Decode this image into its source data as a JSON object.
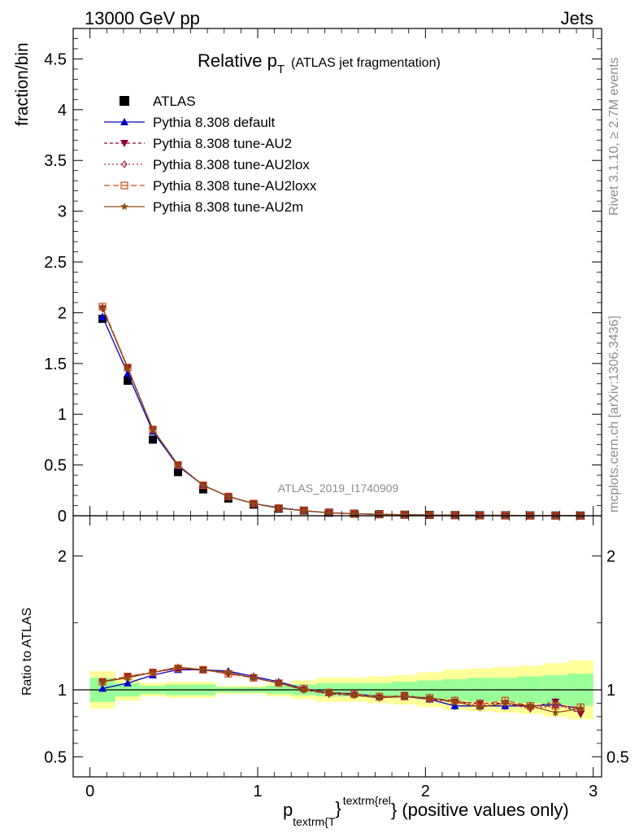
{
  "header": {
    "left": "13000 GeV pp",
    "right": "Jets"
  },
  "side_labels": {
    "rivet": "Rivet 3.1.10, ≥ 2.7M events",
    "mcplots": "mcplots.cern.ch [arXiv:1306.3436]"
  },
  "colors": {
    "ATLAS": "#000000",
    "default": "#0000cc",
    "AU2": "#8b0038",
    "AU2lox": "#b0203a",
    "AU2loxx": "#cc4a10",
    "AU2m": "#8b4a10",
    "band_inner": "#99ff99",
    "band_outer": "#ffff99"
  },
  "chart_data": [
    {
      "type": "line",
      "title_main": "Relative p",
      "title_sub": "T",
      "title_rest": "(ATLAS jet fragmentation)",
      "ylabel": "fraction/bin",
      "watermark": "ATLAS_2019_I1740909",
      "xlim": [
        -0.1,
        3.05
      ],
      "ylim": [
        0,
        4.8
      ],
      "yticks": [
        "0",
        "0.5",
        "1",
        "1.5",
        "2",
        "2.5",
        "3",
        "3.5",
        "4",
        "4.5"
      ],
      "x": [
        0.075,
        0.225,
        0.375,
        0.525,
        0.675,
        0.825,
        0.975,
        1.125,
        1.275,
        1.425,
        1.575,
        1.725,
        1.875,
        2.025,
        2.175,
        2.325,
        2.475,
        2.625,
        2.775,
        2.925
      ],
      "series": [
        {
          "name": "ATLAS",
          "marker": "square",
          "values": [
            1.94,
            1.33,
            0.75,
            0.43,
            0.26,
            0.17,
            0.11,
            0.07,
            0.05,
            0.03,
            0.02,
            0.015,
            0.01,
            0.008,
            0.006,
            0.005,
            0.004,
            0.003,
            0.0025,
            0.002
          ]
        },
        {
          "name": "Pythia 8.308 default",
          "marker": "triangle-up",
          "values": [
            1.96,
            1.4,
            0.83,
            0.49,
            0.3,
            0.19,
            0.12,
            0.08,
            0.05,
            0.03,
            0.02,
            0.014,
            0.0095,
            0.0074,
            0.0053,
            0.0044,
            0.0035,
            0.0026,
            0.0022,
            0.0017
          ]
        },
        {
          "name": "Pythia 8.308 tune-AU2",
          "marker": "triangle-down",
          "values": [
            2.04,
            1.46,
            0.85,
            0.5,
            0.3,
            0.19,
            0.12,
            0.075,
            0.05,
            0.029,
            0.019,
            0.014,
            0.0095,
            0.0075,
            0.0055,
            0.0044,
            0.0036,
            0.0026,
            0.0023,
            0.0016
          ]
        },
        {
          "name": "Pythia 8.308 tune-AU2lox",
          "marker": "diamond",
          "values": [
            2.05,
            1.46,
            0.85,
            0.5,
            0.3,
            0.19,
            0.12,
            0.075,
            0.05,
            0.029,
            0.019,
            0.014,
            0.0095,
            0.0075,
            0.0055,
            0.0045,
            0.0036,
            0.0026,
            0.0022,
            0.0017
          ]
        },
        {
          "name": "Pythia 8.308 tune-AU2loxx",
          "marker": "square-open",
          "values": [
            2.06,
            1.46,
            0.85,
            0.5,
            0.3,
            0.19,
            0.12,
            0.075,
            0.05,
            0.029,
            0.019,
            0.014,
            0.0095,
            0.0074,
            0.0055,
            0.0045,
            0.0037,
            0.0027,
            0.0023,
            0.0017
          ]
        },
        {
          "name": "Pythia 8.308 tune-AU2m",
          "marker": "star",
          "values": [
            2.05,
            1.45,
            0.85,
            0.5,
            0.3,
            0.19,
            0.12,
            0.075,
            0.05,
            0.029,
            0.019,
            0.014,
            0.0095,
            0.0075,
            0.0054,
            0.0044,
            0.0035,
            0.0026,
            0.0021,
            0.0017
          ]
        }
      ]
    },
    {
      "type": "line",
      "ylabel": "Ratio to ATLAS",
      "xlabel_main": "p",
      "xlabel_sub": "textrm{T",
      "xlabel_sup": "textrm{rel",
      "xlabel_rest": "} (positive values only)",
      "xlabel_close": "}",
      "xlim": [
        -0.1,
        3.05
      ],
      "ylim": [
        0.35,
        2.3
      ],
      "yticks": [
        "0.5",
        "1",
        "2"
      ],
      "xticks": [
        "0",
        "1",
        "2",
        "3"
      ],
      "bin_edges": [
        0.0,
        0.15,
        0.3,
        0.45,
        0.6,
        0.75,
        0.9,
        1.05,
        1.2,
        1.35,
        1.5,
        1.65,
        1.8,
        1.95,
        2.1,
        2.25,
        2.4,
        2.55,
        2.7,
        2.85,
        3.0
      ],
      "band_inner": [
        0.09,
        0.05,
        0.03,
        0.04,
        0.04,
        0.02,
        0.02,
        0.03,
        0.04,
        0.05,
        0.05,
        0.05,
        0.06,
        0.07,
        0.08,
        0.09,
        0.09,
        0.1,
        0.11,
        0.12
      ],
      "band_outer": [
        0.14,
        0.08,
        0.05,
        0.06,
        0.06,
        0.03,
        0.03,
        0.05,
        0.07,
        0.09,
        0.09,
        0.1,
        0.11,
        0.13,
        0.15,
        0.16,
        0.17,
        0.18,
        0.2,
        0.22
      ],
      "x": [
        0.075,
        0.225,
        0.375,
        0.525,
        0.675,
        0.825,
        0.975,
        1.125,
        1.275,
        1.425,
        1.575,
        1.725,
        1.875,
        2.025,
        2.175,
        2.325,
        2.475,
        2.625,
        2.775,
        2.925
      ],
      "series": [
        {
          "name": "Pythia 8.308 default",
          "values": [
            1.01,
            1.05,
            1.11,
            1.15,
            1.15,
            1.14,
            1.1,
            1.06,
            1.01,
            0.98,
            0.97,
            0.95,
            0.95,
            0.93,
            0.88,
            0.88,
            0.88,
            0.88,
            0.89,
            0.86
          ]
        },
        {
          "name": "Pythia 8.308 tune-AU2",
          "values": [
            1.06,
            1.1,
            1.13,
            1.16,
            1.15,
            1.12,
            1.09,
            1.05,
            1.0,
            0.97,
            0.96,
            0.94,
            0.96,
            0.93,
            0.91,
            0.9,
            0.9,
            0.87,
            0.91,
            0.82
          ]
        },
        {
          "name": "Pythia 8.308 tune-AU2lox",
          "values": [
            1.06,
            1.1,
            1.13,
            1.16,
            1.15,
            1.12,
            1.09,
            1.05,
            1.0,
            0.97,
            0.96,
            0.95,
            0.95,
            0.93,
            0.91,
            0.88,
            0.9,
            0.86,
            0.88,
            0.85
          ]
        },
        {
          "name": "Pythia 8.308 tune-AU2loxx",
          "values": [
            1.06,
            1.1,
            1.13,
            1.16,
            1.15,
            1.12,
            1.09,
            1.05,
            1.01,
            0.98,
            0.97,
            0.95,
            0.95,
            0.94,
            0.92,
            0.89,
            0.92,
            0.88,
            0.88,
            0.87
          ]
        },
        {
          "name": "Pythia 8.308 tune-AU2m",
          "values": [
            1.06,
            1.09,
            1.13,
            1.17,
            1.15,
            1.13,
            1.09,
            1.05,
            1.0,
            0.98,
            0.96,
            0.94,
            0.95,
            0.94,
            0.91,
            0.87,
            0.9,
            0.88,
            0.83,
            0.86
          ]
        }
      ]
    }
  ]
}
